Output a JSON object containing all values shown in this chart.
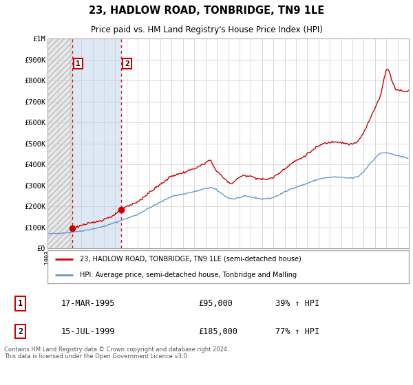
{
  "title": "23, HADLOW ROAD, TONBRIDGE, TN9 1LE",
  "subtitle": "Price paid vs. HM Land Registry's House Price Index (HPI)",
  "legend_line1": "23, HADLOW ROAD, TONBRIDGE, TN9 1LE (semi-detached house)",
  "legend_line2": "HPI: Average price, semi-detached house, Tonbridge and Malling",
  "footer": "Contains HM Land Registry data © Crown copyright and database right 2024.\nThis data is licensed under the Open Government Licence v3.0.",
  "sale1_label": "1",
  "sale1_date": "17-MAR-1995",
  "sale1_price": "£95,000",
  "sale1_hpi": "39% ↑ HPI",
  "sale2_label": "2",
  "sale2_date": "15-JUL-1999",
  "sale2_price": "£185,000",
  "sale2_hpi": "77% ↑ HPI",
  "sale_color": "#cc0000",
  "hpi_color": "#6699cc",
  "ylim": [
    0,
    1000000
  ],
  "xlim_start": 1993.0,
  "xlim_end": 2025.0,
  "sale_points_x": [
    1995.21,
    1999.54
  ],
  "sale_points_y": [
    95000,
    185000
  ]
}
